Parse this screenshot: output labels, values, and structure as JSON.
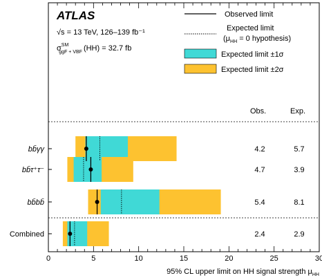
{
  "chart_data": {
    "type": "bar",
    "brand": "ATLAS",
    "energy_line": "√s = 13 TeV, 126–139 fb⁻¹",
    "sm_line": {
      "sigma": "σ",
      "sup": "SM",
      "sub": "ggF + VBF",
      "rest": "(HH) = 32.7 fb"
    },
    "xlabel": "95% CL upper limit on HH signal strength μ",
    "xlabel_sub": "HH",
    "xlim": [
      0,
      30
    ],
    "xticks": [
      "0",
      "5",
      "10",
      "15",
      "20",
      "25",
      "30"
    ],
    "categories": [
      "bb̄γγ",
      "bb̄τ⁺τ⁻",
      "bb̄bb̄",
      "Combined"
    ],
    "observed": [
      4.2,
      4.7,
      5.4,
      2.4
    ],
    "expected": [
      5.7,
      3.9,
      8.1,
      2.9
    ],
    "band_1sigma": [
      [
        4.1,
        8.8
      ],
      [
        2.8,
        5.9
      ],
      [
        5.8,
        12.3
      ],
      [
        2.1,
        4.3
      ]
    ],
    "band_2sigma": [
      [
        3.0,
        14.2
      ],
      [
        2.1,
        9.4
      ],
      [
        4.4,
        19.1
      ],
      [
        1.6,
        6.7
      ]
    ],
    "columns": {
      "obs": "Obs.",
      "exp": "Exp."
    },
    "obs_labels": [
      "4.2",
      "4.7",
      "5.4",
      "2.4"
    ],
    "exp_labels": [
      "5.7",
      "3.9",
      "8.1",
      "2.9"
    ],
    "legend": {
      "observed": "Observed limit",
      "expected_l1": "Expected limit",
      "expected_l2": "(μ",
      "expected_l2_sub": "HH",
      "expected_l2_rest": " = 0 hypothesis)",
      "sigma1": "Expected limit ±1σ",
      "sigma2": "Expected limit ±2σ"
    },
    "colors": {
      "sigma1": "#40d9d6",
      "sigma2": "#fdc230"
    },
    "grid": false
  }
}
